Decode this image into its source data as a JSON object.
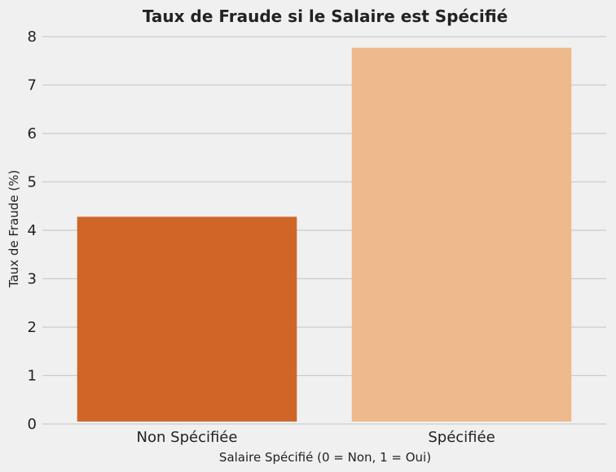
{
  "chart_data": {
    "type": "bar",
    "title": "Taux de Fraude si le Salaire est Spécifié",
    "xlabel": "Salaire Spécifié (0 = Non, 1 = Oui)",
    "ylabel": "Taux de Fraude (%)",
    "categories": [
      "Non Spécifiée",
      "Spécifiée"
    ],
    "values": [
      4.28,
      7.77
    ],
    "colors": [
      "#cf6627",
      "#eeb98b"
    ],
    "ylim": [
      0,
      8
    ],
    "yticks": [
      0,
      1,
      2,
      3,
      4,
      5,
      6,
      7,
      8
    ],
    "grid": "horizontal",
    "background": "#f0f0f0"
  }
}
